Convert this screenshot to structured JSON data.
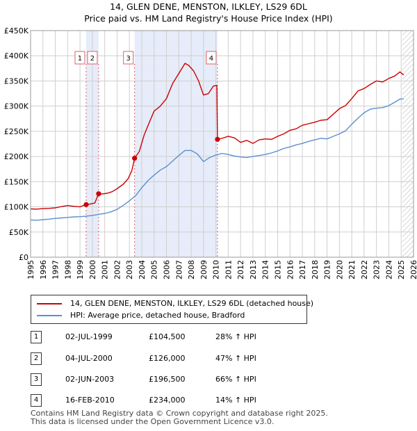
{
  "title": "14, GLEN DENE, MENSTON, ILKLEY, LS29 6DL",
  "subtitle": "Price paid vs. HM Land Registry's House Price Index (HPI)",
  "colors": {
    "price": "#cc0000",
    "hpi": "#5b8fd0",
    "shade": "#e6ecf9",
    "vline": "#e06060",
    "grid": "#cfcfcf",
    "future_hatch": "#c8c8c8"
  },
  "chart_data": {
    "type": "line",
    "title": "14, GLEN DENE, MENSTON, ILKLEY, LS29 6DL",
    "subtitle": "Price paid vs. HM Land Registry's House Price Index (HPI)",
    "xlim": [
      1995,
      2026
    ],
    "ylim": [
      0,
      450000
    ],
    "x_ticks": [
      1995,
      1996,
      1997,
      1998,
      1999,
      2000,
      2001,
      2002,
      2003,
      2004,
      2005,
      2006,
      2007,
      2008,
      2009,
      2010,
      2011,
      2012,
      2013,
      2014,
      2015,
      2016,
      2017,
      2018,
      2019,
      2020,
      2021,
      2022,
      2023,
      2024,
      2025,
      2026
    ],
    "y_ticks": [
      {
        "value": 0,
        "label": "£0"
      },
      {
        "value": 50000,
        "label": "£50K"
      },
      {
        "value": 100000,
        "label": "£100K"
      },
      {
        "value": 150000,
        "label": "£150K"
      },
      {
        "value": 200000,
        "label": "£200K"
      },
      {
        "value": 250000,
        "label": "£250K"
      },
      {
        "value": 300000,
        "label": "£300K"
      },
      {
        "value": 350000,
        "label": "£350K"
      },
      {
        "value": 400000,
        "label": "£400K"
      },
      {
        "value": 450000,
        "label": "£450K"
      }
    ],
    "shaded_ranges": [
      [
        1999.5,
        2000.51
      ],
      [
        2003.42,
        2010.13
      ]
    ],
    "future_from": 2025.1,
    "series": [
      {
        "name": "14, GLEN DENE, MENSTON, ILKLEY, LS29 6DL (detached house)",
        "color": "#cc0000",
        "points": [
          [
            1995.0,
            96000
          ],
          [
            1995.5,
            95500
          ],
          [
            1996.0,
            96500
          ],
          [
            1996.5,
            97000
          ],
          [
            1997.0,
            98000
          ],
          [
            1997.5,
            100500
          ],
          [
            1998.0,
            102500
          ],
          [
            1998.5,
            101000
          ],
          [
            1999.0,
            100000
          ],
          [
            1999.3,
            103000
          ],
          [
            1999.5,
            104500
          ],
          [
            1999.8,
            105500
          ],
          [
            2000.2,
            107500
          ],
          [
            2000.5,
            126000
          ],
          [
            2000.8,
            125500
          ],
          [
            2001.2,
            127000
          ],
          [
            2001.6,
            130000
          ],
          [
            2002.0,
            136000
          ],
          [
            2002.5,
            145000
          ],
          [
            2002.9,
            156000
          ],
          [
            2003.2,
            172000
          ],
          [
            2003.42,
            196500
          ],
          [
            2003.8,
            210000
          ],
          [
            2004.2,
            243000
          ],
          [
            2004.6,
            267000
          ],
          [
            2005.0,
            290000
          ],
          [
            2005.5,
            300000
          ],
          [
            2006.0,
            315000
          ],
          [
            2006.5,
            345000
          ],
          [
            2007.0,
            365000
          ],
          [
            2007.5,
            385000
          ],
          [
            2007.8,
            381000
          ],
          [
            2008.2,
            370000
          ],
          [
            2008.6,
            350000
          ],
          [
            2009.0,
            322000
          ],
          [
            2009.4,
            325000
          ],
          [
            2009.8,
            340000
          ],
          [
            2010.08,
            341000
          ],
          [
            2010.13,
            234000
          ],
          [
            2010.5,
            236000
          ],
          [
            2011.0,
            240000
          ],
          [
            2011.5,
            237000
          ],
          [
            2012.0,
            228000
          ],
          [
            2012.5,
            232000
          ],
          [
            2013.0,
            226000
          ],
          [
            2013.5,
            233000
          ],
          [
            2014.0,
            235000
          ],
          [
            2014.5,
            234000
          ],
          [
            2015.0,
            240000
          ],
          [
            2015.5,
            245000
          ],
          [
            2016.0,
            252000
          ],
          [
            2016.5,
            255000
          ],
          [
            2017.0,
            262000
          ],
          [
            2017.5,
            265000
          ],
          [
            2018.0,
            268000
          ],
          [
            2018.5,
            272000
          ],
          [
            2019.0,
            273000
          ],
          [
            2019.5,
            284000
          ],
          [
            2020.0,
            295000
          ],
          [
            2020.5,
            301000
          ],
          [
            2021.0,
            315000
          ],
          [
            2021.5,
            330000
          ],
          [
            2022.0,
            335000
          ],
          [
            2022.5,
            343000
          ],
          [
            2023.0,
            350000
          ],
          [
            2023.5,
            348000
          ],
          [
            2024.0,
            355000
          ],
          [
            2024.5,
            360000
          ],
          [
            2024.9,
            368000
          ],
          [
            2025.2,
            362000
          ]
        ]
      },
      {
        "name": "HPI: Average price, detached house, Bradford",
        "color": "#5b8fd0",
        "points": [
          [
            1995.0,
            74000
          ],
          [
            1995.5,
            73500
          ],
          [
            1996.0,
            74500
          ],
          [
            1996.5,
            75500
          ],
          [
            1997.0,
            77000
          ],
          [
            1997.5,
            78000
          ],
          [
            1998.0,
            79000
          ],
          [
            1998.5,
            80000
          ],
          [
            1999.0,
            80500
          ],
          [
            1999.5,
            81500
          ],
          [
            2000.0,
            83000
          ],
          [
            2000.5,
            85000
          ],
          [
            2001.0,
            87000
          ],
          [
            2001.5,
            90000
          ],
          [
            2002.0,
            95000
          ],
          [
            2002.5,
            103000
          ],
          [
            2003.0,
            112000
          ],
          [
            2003.5,
            122000
          ],
          [
            2004.0,
            138000
          ],
          [
            2004.5,
            152000
          ],
          [
            2005.0,
            163000
          ],
          [
            2005.5,
            173000
          ],
          [
            2006.0,
            180000
          ],
          [
            2006.5,
            191000
          ],
          [
            2007.0,
            202000
          ],
          [
            2007.5,
            212000
          ],
          [
            2008.0,
            212000
          ],
          [
            2008.5,
            205000
          ],
          [
            2009.0,
            190000
          ],
          [
            2009.5,
            198000
          ],
          [
            2010.0,
            203000
          ],
          [
            2010.5,
            206000
          ],
          [
            2011.0,
            204000
          ],
          [
            2011.5,
            201000
          ],
          [
            2012.0,
            199000
          ],
          [
            2012.5,
            198000
          ],
          [
            2013.0,
            200000
          ],
          [
            2013.5,
            202000
          ],
          [
            2014.0,
            204000
          ],
          [
            2014.5,
            207000
          ],
          [
            2015.0,
            211000
          ],
          [
            2015.5,
            216000
          ],
          [
            2016.0,
            219000
          ],
          [
            2016.5,
            223000
          ],
          [
            2017.0,
            226000
          ],
          [
            2017.5,
            230000
          ],
          [
            2018.0,
            233000
          ],
          [
            2018.5,
            236000
          ],
          [
            2019.0,
            235000
          ],
          [
            2019.5,
            240000
          ],
          [
            2020.0,
            245000
          ],
          [
            2020.5,
            251000
          ],
          [
            2021.0,
            264000
          ],
          [
            2021.5,
            276000
          ],
          [
            2022.0,
            287000
          ],
          [
            2022.5,
            294000
          ],
          [
            2023.0,
            296000
          ],
          [
            2023.5,
            297000
          ],
          [
            2024.0,
            301000
          ],
          [
            2024.5,
            308000
          ],
          [
            2024.9,
            314000
          ],
          [
            2025.2,
            314500
          ]
        ]
      }
    ],
    "markers": [
      {
        "label": "1",
        "x": 1999.5,
        "y": 104500
      },
      {
        "label": "2",
        "x": 2000.51,
        "y": 126000
      },
      {
        "label": "3",
        "x": 2003.42,
        "y": 196500
      },
      {
        "label": "4",
        "x": 2010.13,
        "y": 234000
      }
    ]
  },
  "legend": [
    {
      "label": "14, GLEN DENE, MENSTON, ILKLEY, LS29 6DL (detached house)",
      "color": "#cc0000"
    },
    {
      "label": "HPI: Average price, detached house, Bradford",
      "color": "#5b8fd0"
    }
  ],
  "transactions": [
    {
      "num": "1",
      "date": "02-JUL-1999",
      "price": "£104,500",
      "hpi": "28% ↑ HPI"
    },
    {
      "num": "2",
      "date": "04-JUL-2000",
      "price": "£126,000",
      "hpi": "47% ↑ HPI"
    },
    {
      "num": "3",
      "date": "02-JUN-2003",
      "price": "£196,500",
      "hpi": "66% ↑ HPI"
    },
    {
      "num": "4",
      "date": "16-FEB-2010",
      "price": "£234,000",
      "hpi": "14% ↑ HPI"
    }
  ],
  "footer": {
    "line1": "Contains HM Land Registry data © Crown copyright and database right 2025.",
    "line2": "This data is licensed under the Open Government Licence v3.0."
  }
}
